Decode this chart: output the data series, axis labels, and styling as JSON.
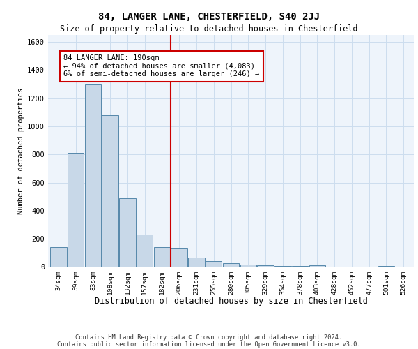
{
  "title": "84, LANGER LANE, CHESTERFIELD, S40 2JJ",
  "subtitle": "Size of property relative to detached houses in Chesterfield",
  "xlabel": "Distribution of detached houses by size in Chesterfield",
  "ylabel": "Number of detached properties",
  "footer_line1": "Contains HM Land Registry data © Crown copyright and database right 2024.",
  "footer_line2": "Contains public sector information licensed under the Open Government Licence v3.0.",
  "bar_labels": [
    "34sqm",
    "59sqm",
    "83sqm",
    "108sqm",
    "132sqm",
    "157sqm",
    "182sqm",
    "206sqm",
    "231sqm",
    "255sqm",
    "280sqm",
    "305sqm",
    "329sqm",
    "354sqm",
    "378sqm",
    "403sqm",
    "428sqm",
    "452sqm",
    "477sqm",
    "501sqm",
    "526sqm"
  ],
  "bar_values": [
    140,
    810,
    1300,
    1080,
    490,
    230,
    140,
    130,
    65,
    40,
    25,
    15,
    10,
    5,
    5,
    10,
    0,
    0,
    0,
    5,
    0
  ],
  "bar_color": "#c8d8e8",
  "bar_edge_color": "#5588aa",
  "grid_color": "#ccddee",
  "background_color": "#eef4fb",
  "vline_x": 6.5,
  "vline_color": "#cc0000",
  "annotation_text": "84 LANGER LANE: 190sqm\n← 94% of detached houses are smaller (4,083)\n6% of semi-detached houses are larger (246) →",
  "annotation_box_color": "#ffffff",
  "annotation_box_edge": "#cc0000",
  "ylim": [
    0,
    1650
  ],
  "yticks": [
    0,
    200,
    400,
    600,
    800,
    1000,
    1200,
    1400,
    1600
  ]
}
